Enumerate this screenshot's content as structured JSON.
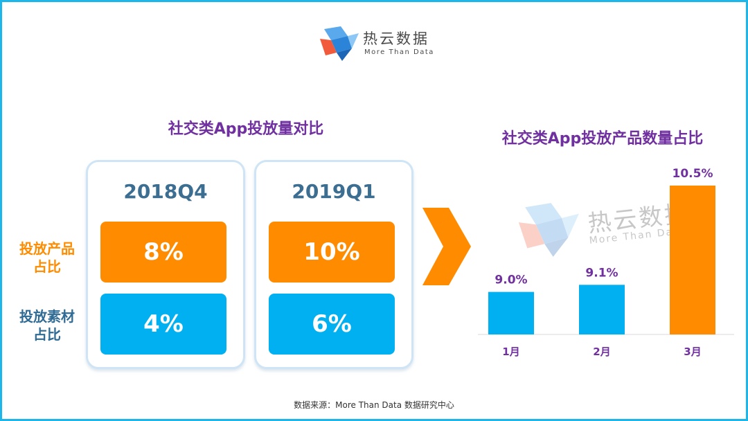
{
  "logo": {
    "title": "热云数据",
    "subtitle": "More Than Data"
  },
  "watermark": {
    "title": "热云数据",
    "subtitle": "More Than Data"
  },
  "left_panel": {
    "title": "社交类App投放量对比",
    "row_labels": [
      {
        "line1": "投放产品",
        "line2": "占比",
        "color": "#ff8c00"
      },
      {
        "line1": "投放素材",
        "line2": "占比",
        "color": "#2f6b95"
      }
    ],
    "periods": [
      {
        "label": "2018Q4",
        "product_share": "8%",
        "material_share": "4%"
      },
      {
        "label": "2019Q1",
        "product_share": "10%",
        "material_share": "6%"
      }
    ]
  },
  "right_panel": {
    "title": "社交类App投放产品数量占比"
  },
  "chart_data": [
    {
      "type": "table",
      "title": "社交类App投放量对比",
      "columns": [
        "2018Q4",
        "2019Q1"
      ],
      "rows": [
        {
          "label": "投放产品占比",
          "values": [
            8,
            10
          ]
        },
        {
          "label": "投放素材占比",
          "values": [
            4,
            6
          ]
        }
      ],
      "unit": "%"
    },
    {
      "type": "bar",
      "title": "社交类App投放产品数量占比",
      "categories": [
        "1月",
        "2月",
        "3月"
      ],
      "values": [
        9.0,
        9.1,
        10.5
      ],
      "value_labels": [
        "9.0%",
        "9.1%",
        "10.5%"
      ],
      "bar_colors": [
        "#00b0f0",
        "#00b0f0",
        "#ff8c00"
      ],
      "label_color": "#7030a0",
      "axis_color": "#d9d9d9",
      "grid": false,
      "ylim": [
        8.4,
        10.5
      ]
    }
  ],
  "colors": {
    "accent_purple": "#7030a0",
    "orange": "#ff8c00",
    "blue": "#00b0f0",
    "frame": "#1bb6ea"
  },
  "source": "数据来源：More Than Data 数据研究中心"
}
